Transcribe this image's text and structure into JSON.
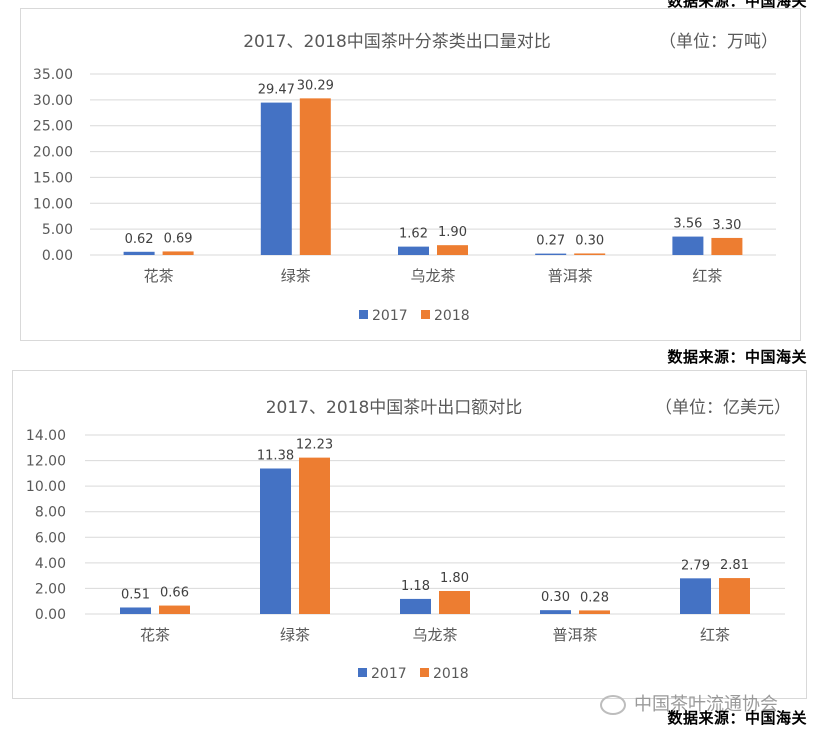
{
  "sources": {
    "top": "数据来源：中国海关",
    "chart1": "数据来源：中国海关",
    "chart2": "数据来源：中国海关"
  },
  "watermark": "中国茶叶流通协会",
  "colors": {
    "s2017": "#4472c4",
    "s2018": "#ed7d31",
    "grid": "#d9d9d9"
  },
  "chart_data": [
    {
      "type": "bar",
      "title": "2017、2018中国茶叶分茶类出口量对比",
      "unit": "（单位：万吨）",
      "categories": [
        "花茶",
        "绿茶",
        "乌龙茶",
        "普洱茶",
        "红茶"
      ],
      "ylim": [
        0,
        35
      ],
      "yticks": [
        "0.00",
        "5.00",
        "10.00",
        "15.00",
        "20.00",
        "25.00",
        "30.00",
        "35.00"
      ],
      "grid": true,
      "legend_position": "bottom",
      "series": [
        {
          "name": "2017",
          "values": [
            0.62,
            29.47,
            1.62,
            0.27,
            3.56
          ],
          "labels": [
            "0.62",
            "29.47",
            "1.62",
            "0.27",
            "3.56"
          ]
        },
        {
          "name": "2018",
          "values": [
            0.69,
            30.29,
            1.9,
            0.3,
            3.3
          ],
          "labels": [
            "0.69",
            "30.29",
            "1.90",
            "0.30",
            "3.30"
          ]
        }
      ]
    },
    {
      "type": "bar",
      "title": "2017、2018中国茶叶出口额对比",
      "unit": "（单位：亿美元）",
      "categories": [
        "花茶",
        "绿茶",
        "乌龙茶",
        "普洱茶",
        "红茶"
      ],
      "ylim": [
        0,
        14
      ],
      "yticks": [
        "0.00",
        "2.00",
        "4.00",
        "6.00",
        "8.00",
        "10.00",
        "12.00",
        "14.00"
      ],
      "grid": true,
      "legend_position": "bottom",
      "series": [
        {
          "name": "2017",
          "values": [
            0.51,
            11.38,
            1.18,
            0.3,
            2.79
          ],
          "labels": [
            "0.51",
            "11.38",
            "1.18",
            "0.30",
            "2.79"
          ]
        },
        {
          "name": "2018",
          "values": [
            0.66,
            12.23,
            1.8,
            0.28,
            2.81
          ],
          "labels": [
            "0.66",
            "12.23",
            "1.80",
            "0.28",
            "2.81"
          ]
        }
      ]
    }
  ]
}
